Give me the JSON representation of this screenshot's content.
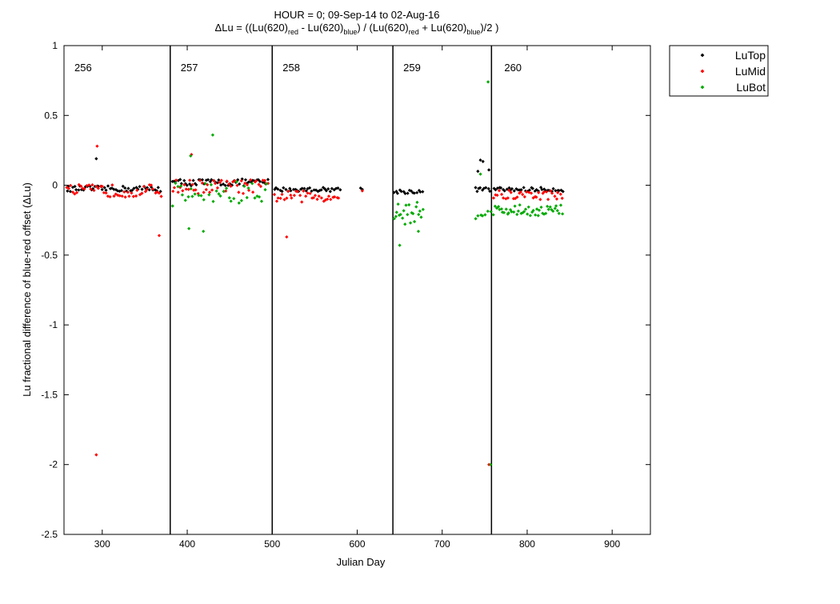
{
  "chart_data": {
    "type": "scatter",
    "title_line1": "HOUR = 0; 09-Sep-14 to 02-Aug-16",
    "title_line2": {
      "prefix": "ΔLu = ((Lu(620)",
      "sub_red_1": "red",
      "minus": " - Lu(620)",
      "sub_blue_1": "blue",
      "mid": ") / (Lu(620)",
      "sub_red_2": "red",
      "plus": " + Lu(620)",
      "sub_blue_2": "blue",
      "suffix": ")/2  )"
    },
    "xlabel": "Julian Day",
    "ylabel": "Lu fractional difference of blue-red offset (ΔLu)",
    "xlim": [
      255,
      945
    ],
    "ylim": [
      -2.5,
      1
    ],
    "xticks": [
      300,
      400,
      500,
      600,
      700,
      800,
      900
    ],
    "yticks": [
      1,
      0.5,
      0,
      -0.5,
      -1,
      -1.5,
      -2,
      -2.5
    ],
    "ytick_labels": [
      "1",
      "0.5",
      "0",
      "-0.5",
      "-1",
      "-1.5",
      "-2",
      "-2.5"
    ],
    "grid": false,
    "legend_position": "outside-top-right",
    "colors": {
      "LuTop": "#000000",
      "LuMid": "#ff0000",
      "LuBot": "#00aa00"
    },
    "dividers": [
      {
        "x": 380,
        "label": "256"
      },
      {
        "x": 500,
        "label": "257"
      },
      {
        "x": 642,
        "label": "258"
      },
      {
        "x": 758,
        "label": "259"
      }
    ],
    "last_section_label": "260",
    "series": [
      {
        "name": "LuTop",
        "segments": [
          {
            "x0": 258,
            "x1": 370,
            "mean": -0.025,
            "spread": 0.02,
            "step": 2.2
          },
          {
            "x0": 382,
            "x1": 495,
            "mean": 0.02,
            "spread": 0.025,
            "step": 2.2
          },
          {
            "x0": 502,
            "x1": 580,
            "mean": -0.03,
            "spread": 0.015,
            "step": 2.2
          },
          {
            "x0": 643,
            "x1": 678,
            "mean": -0.045,
            "spread": 0.015,
            "step": 2.2
          },
          {
            "x0": 738,
            "x1": 757,
            "mean": -0.03,
            "spread": 0.015,
            "step": 2.2
          },
          {
            "x0": 760,
            "x1": 842,
            "mean": -0.03,
            "spread": 0.015,
            "step": 2.2
          }
        ],
        "extra": [
          [
            293,
            0.19
          ],
          [
            604,
            -0.02
          ],
          [
            606,
            -0.03
          ],
          [
            745,
            0.18
          ],
          [
            748,
            0.17
          ],
          [
            742,
            0.1
          ],
          [
            755,
            0.11
          ]
        ]
      },
      {
        "name": "LuMid",
        "segments": [
          {
            "x0": 258,
            "x1": 370,
            "mean": -0.04,
            "spread": 0.045,
            "step": 2.3
          },
          {
            "x0": 382,
            "x1": 495,
            "mean": -0.01,
            "spread": 0.05,
            "step": 2.3
          },
          {
            "x0": 502,
            "x1": 580,
            "mean": -0.08,
            "spread": 0.04,
            "step": 2.3
          },
          {
            "x0": 760,
            "x1": 842,
            "mean": -0.07,
            "spread": 0.035,
            "step": 2.3
          }
        ],
        "extra": [
          [
            294,
            0.28
          ],
          [
            293,
            -1.93
          ],
          [
            367,
            -0.36
          ],
          [
            405,
            0.22
          ],
          [
            517,
            -0.37
          ],
          [
            606,
            -0.04
          ],
          [
            755,
            -2.0
          ]
        ]
      },
      {
        "name": "LuBot",
        "segments": [
          {
            "x0": 382,
            "x1": 495,
            "mean": -0.06,
            "spread": 0.09,
            "step": 3
          },
          {
            "x0": 643,
            "x1": 678,
            "mean": -0.2,
            "spread": 0.08,
            "step": 1.6
          },
          {
            "x0": 738,
            "x1": 756,
            "mean": -0.18,
            "spread": 0.06,
            "step": 3
          },
          {
            "x0": 760,
            "x1": 842,
            "mean": -0.18,
            "spread": 0.04,
            "step": 1.8
          }
        ],
        "extra": [
          [
            430,
            0.36
          ],
          [
            404,
            0.21
          ],
          [
            402,
            -0.31
          ],
          [
            419,
            -0.33
          ],
          [
            650,
            -0.43
          ],
          [
            672,
            -0.33
          ],
          [
            754,
            0.74
          ],
          [
            757,
            -2.0
          ],
          [
            745,
            0.08
          ]
        ]
      }
    ]
  }
}
